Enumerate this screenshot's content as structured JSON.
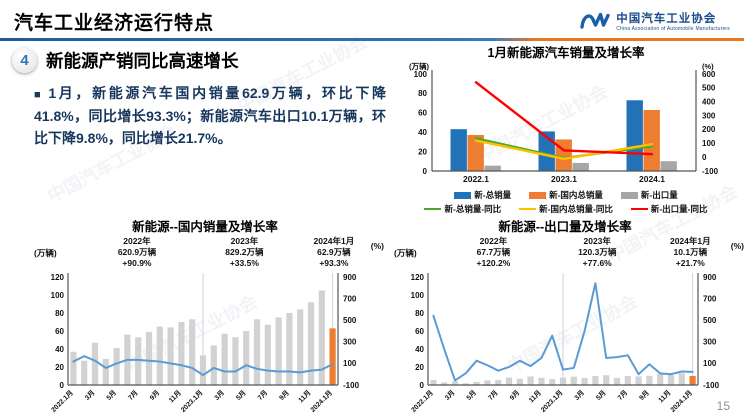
{
  "header": {
    "title": "汽车工业经济运行特点",
    "logo": {
      "org_cn": "中国汽车工业协会",
      "org_en": "China Association of Automobile Manufacturers"
    }
  },
  "section": {
    "number": "4",
    "bullet": "■",
    "title": "新能源产销同比高速增长",
    "body": "1月，新能源汽车国内销量62.9万辆，环比下降41.8%，同比增长93.3%；新能源汽车出口10.1万辆，环比下降9.8%，同比增长21.7%。"
  },
  "watermark_text": "中国汽车工业协会",
  "page_number": "15",
  "colors": {
    "bar_blue": "#2272B8",
    "bar_orange": "#ED7D31",
    "bar_gray": "#A6A6A6",
    "line_green": "#4EA72E",
    "line_yellow": "#FFC000",
    "line_red": "#FF0000",
    "line_lightblue": "#5B9BD5",
    "divider_blue": "#2E75B6",
    "divider_orange": "#E87722"
  },
  "chart_data": [
    {
      "type": "bar+line",
      "title": "1月新能源汽车销量及增长率",
      "legend_position": "bottom",
      "left_axis": {
        "label": "(万辆)",
        "min": 0,
        "max": 100,
        "step": 20
      },
      "right_axis": {
        "label": "(%)",
        "min": -100,
        "max": 600,
        "step": 100
      },
      "categories": [
        "2022.1",
        "2023.1",
        "2024.1"
      ],
      "bar_series": [
        {
          "name": "新-总销量",
          "color": "#2272B8",
          "values": [
            43.1,
            40.8,
            72.9
          ]
        },
        {
          "name": "新-国内总销量",
          "color": "#ED7D31",
          "values": [
            37.1,
            32.5,
            62.9
          ]
        },
        {
          "name": "新-出口量",
          "color": "#A6A6A6",
          "values": [
            5.5,
            8.3,
            10.1
          ]
        }
      ],
      "line_series": [
        {
          "name": "新-总销量-同比",
          "color": "#4EA72E",
          "values": [
            135.8,
            -6.3,
            78.8
          ]
        },
        {
          "name": "新-国内总销量-同比",
          "color": "#FFC000",
          "values": [
            120.0,
            -12.4,
            93.3
          ]
        },
        {
          "name": "新-出口量-同比",
          "color": "#FF0000",
          "values": [
            540,
            48.2,
            21.7
          ]
        }
      ]
    },
    {
      "type": "bar+line",
      "title": "新能源--国内销量及增长率",
      "annotations": [
        {
          "period": "2022年",
          "value": "620.9万辆",
          "growth": "+90.9%"
        },
        {
          "period": "2023年",
          "value": "829.2万辆",
          "growth": "+33.5%"
        },
        {
          "period": "2024年1月",
          "value": "62.9万辆",
          "growth": "+93.3%"
        }
      ],
      "left_axis": {
        "label": "(万辆)",
        "min": 0,
        "max": 120,
        "step": 20
      },
      "right_axis": {
        "label": "(%)",
        "min": -100,
        "max": 900,
        "step": 200
      },
      "tick_labels": [
        "2022.1月",
        "3月",
        "5月",
        "7月",
        "9月",
        "11月",
        "2023.1月",
        "3月",
        "5月",
        "7月",
        "9月",
        "11月",
        "2024.1月"
      ],
      "bar_values": [
        37,
        27,
        47,
        29,
        41,
        56,
        53,
        59,
        65,
        64,
        70,
        73,
        33,
        44,
        57,
        53,
        60,
        73,
        67,
        75,
        80,
        84,
        92,
        105,
        62.9
      ],
      "bar_color": "#D2D2D2",
      "highlight_index": 24,
      "highlight_color": "#ED7D31",
      "separators": [
        12,
        24
      ],
      "line": {
        "name": "同比增长率",
        "color": "#5B9BD5",
        "values": [
          117,
          167,
          125,
          58,
          100,
          133,
          133,
          125,
          117,
          100,
          83,
          58,
          -8,
          58,
          25,
          25,
          83,
          50,
          33,
          25,
          25,
          17,
          33,
          42,
          93.3
        ]
      }
    },
    {
      "type": "bar+line",
      "title": "新能源--出口量及增长率",
      "annotations": [
        {
          "period": "2022年",
          "value": "67.7万辆",
          "growth": "+120.2%"
        },
        {
          "period": "2023年",
          "value": "120.3万辆",
          "growth": "+77.6%"
        },
        {
          "period": "2024年1月",
          "value": "10.1万辆",
          "growth": "+21.7%"
        }
      ],
      "left_axis": {
        "label": "(万辆)",
        "min": 0,
        "max": 120,
        "step": 20
      },
      "right_axis": {
        "label": "(%)",
        "min": -100,
        "max": 900,
        "step": 200
      },
      "tick_labels": [
        "2022.1月",
        "3月",
        "5月",
        "7月",
        "9月",
        "11月",
        "2023.1月",
        "3月",
        "5月",
        "7月",
        "9月",
        "11月",
        "2024.1月"
      ],
      "bar_values": [
        5.5,
        2.9,
        4.1,
        1.9,
        3.4,
        5.1,
        5.4,
        8.3,
        7.0,
        9.5,
        8.0,
        6.6,
        8.3,
        9.2,
        7.8,
        10.0,
        10.9,
        7.9,
        10.1,
        9.5,
        10.2,
        12.4,
        11.0,
        13.0,
        10.1
      ],
      "bar_color": "#D2D2D2",
      "highlight_index": 24,
      "highlight_color": "#ED7D31",
      "separators": [
        12,
        24
      ],
      "line": {
        "name": "同比增长率",
        "color": "#5B9BD5",
        "values": [
          542,
          233,
          -58,
          8,
          125,
          83,
          33,
          67,
          125,
          75,
          150,
          358,
          42,
          58,
          400,
          842,
          150,
          158,
          175,
          0,
          92,
          8,
          0,
          25,
          21.7
        ]
      }
    }
  ]
}
